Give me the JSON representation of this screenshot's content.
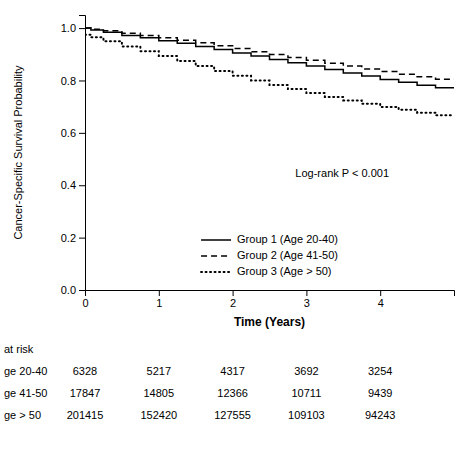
{
  "chart_data": {
    "type": "step",
    "xlabel": "Time (Years)",
    "ylabel": "Cancer-Specific Survival Probability",
    "annotation": "Log-rank P < 0.001",
    "xlim": [
      0,
      5
    ],
    "ylim": [
      0.0,
      1.05
    ],
    "xticks": [
      0,
      1,
      2,
      3,
      4
    ],
    "yticks": [
      {
        "value": 0.0,
        "label": "0.0"
      },
      0.2,
      0.4,
      0.6,
      0.8,
      {
        "value": 1.0,
        "label": "1.0"
      }
    ],
    "legend": "lower center",
    "series": [
      {
        "name": "Group 1 (Age 20-40)",
        "color": "black",
        "line_style": "solid",
        "x": [
          0.0,
          0.08,
          0.08,
          0.25,
          0.25,
          0.5,
          0.5,
          0.75,
          0.75,
          1.0,
          1.0,
          1.25,
          1.25,
          1.5,
          1.5,
          1.75,
          1.75,
          2.0,
          2.0,
          2.25,
          2.25,
          2.5,
          2.5,
          2.75,
          2.75,
          3.0,
          3.0,
          3.25,
          3.25,
          3.5,
          3.5,
          3.75,
          3.75,
          4.0,
          4.0,
          4.25,
          4.25,
          4.5,
          4.5,
          4.75,
          4.75,
          5.0
        ],
        "values": [
          1.0,
          1.0,
          0.993,
          0.993,
          0.984,
          0.984,
          0.972,
          0.972,
          0.963,
          0.963,
          0.952,
          0.952,
          0.942,
          0.942,
          0.93,
          0.93,
          0.918,
          0.918,
          0.905,
          0.905,
          0.893,
          0.893,
          0.88,
          0.88,
          0.868,
          0.868,
          0.855,
          0.855,
          0.842,
          0.842,
          0.829,
          0.829,
          0.817,
          0.817,
          0.804,
          0.804,
          0.793,
          0.793,
          0.782,
          0.782,
          0.772,
          0.772
        ]
      },
      {
        "name": "Group 2 (Age 41-50)",
        "color": "black",
        "line_style": "dashed",
        "x": [
          0.0,
          0.08,
          0.08,
          0.25,
          0.25,
          0.5,
          0.5,
          0.75,
          0.75,
          1.0,
          1.0,
          1.25,
          1.25,
          1.5,
          1.5,
          1.75,
          1.75,
          2.0,
          2.0,
          2.25,
          2.25,
          2.5,
          2.5,
          2.75,
          2.75,
          3.0,
          3.0,
          3.25,
          3.25,
          3.5,
          3.5,
          3.75,
          3.75,
          4.0,
          4.0,
          4.25,
          4.25,
          4.5,
          4.5,
          4.75,
          4.75,
          5.0
        ],
        "values": [
          1.0,
          1.0,
          0.996,
          0.996,
          0.99,
          0.99,
          0.98,
          0.98,
          0.972,
          0.972,
          0.963,
          0.963,
          0.954,
          0.954,
          0.944,
          0.944,
          0.933,
          0.933,
          0.922,
          0.922,
          0.91,
          0.91,
          0.899,
          0.899,
          0.888,
          0.888,
          0.877,
          0.877,
          0.866,
          0.866,
          0.855,
          0.855,
          0.844,
          0.844,
          0.834,
          0.834,
          0.824,
          0.824,
          0.814,
          0.814,
          0.805,
          0.805
        ]
      },
      {
        "name": "Group 3 (Age > 50)",
        "color": "black",
        "line_style": "dotted",
        "x": [
          0.0,
          0.08,
          0.08,
          0.25,
          0.25,
          0.5,
          0.5,
          0.75,
          0.75,
          1.0,
          1.0,
          1.25,
          1.25,
          1.5,
          1.5,
          1.75,
          1.75,
          2.0,
          2.0,
          2.25,
          2.25,
          2.5,
          2.5,
          2.75,
          2.75,
          3.0,
          3.0,
          3.25,
          3.25,
          3.5,
          3.5,
          3.75,
          3.75,
          4.0,
          4.0,
          4.25,
          4.25,
          4.5,
          4.5,
          4.75,
          4.75,
          5.0
        ],
        "values": [
          0.975,
          0.975,
          0.965,
          0.965,
          0.95,
          0.95,
          0.93,
          0.93,
          0.912,
          0.912,
          0.893,
          0.893,
          0.874,
          0.874,
          0.855,
          0.855,
          0.836,
          0.836,
          0.818,
          0.818,
          0.8,
          0.8,
          0.783,
          0.783,
          0.767,
          0.767,
          0.752,
          0.752,
          0.737,
          0.737,
          0.724,
          0.724,
          0.711,
          0.711,
          0.699,
          0.699,
          0.688,
          0.688,
          0.677,
          0.677,
          0.667,
          0.667
        ]
      }
    ],
    "at_risk": {
      "title": "at risk",
      "times": [
        0,
        1,
        2,
        3,
        4
      ],
      "rows": [
        {
          "label": "ge 20-40",
          "values": [
            6328,
            5217,
            4317,
            3692,
            3254
          ]
        },
        {
          "label": "ge 41-50",
          "values": [
            17847,
            14805,
            12366,
            10711,
            9439
          ]
        },
        {
          "label": "ge > 50",
          "values": [
            201415,
            152420,
            127555,
            109103,
            94243
          ]
        }
      ]
    }
  }
}
